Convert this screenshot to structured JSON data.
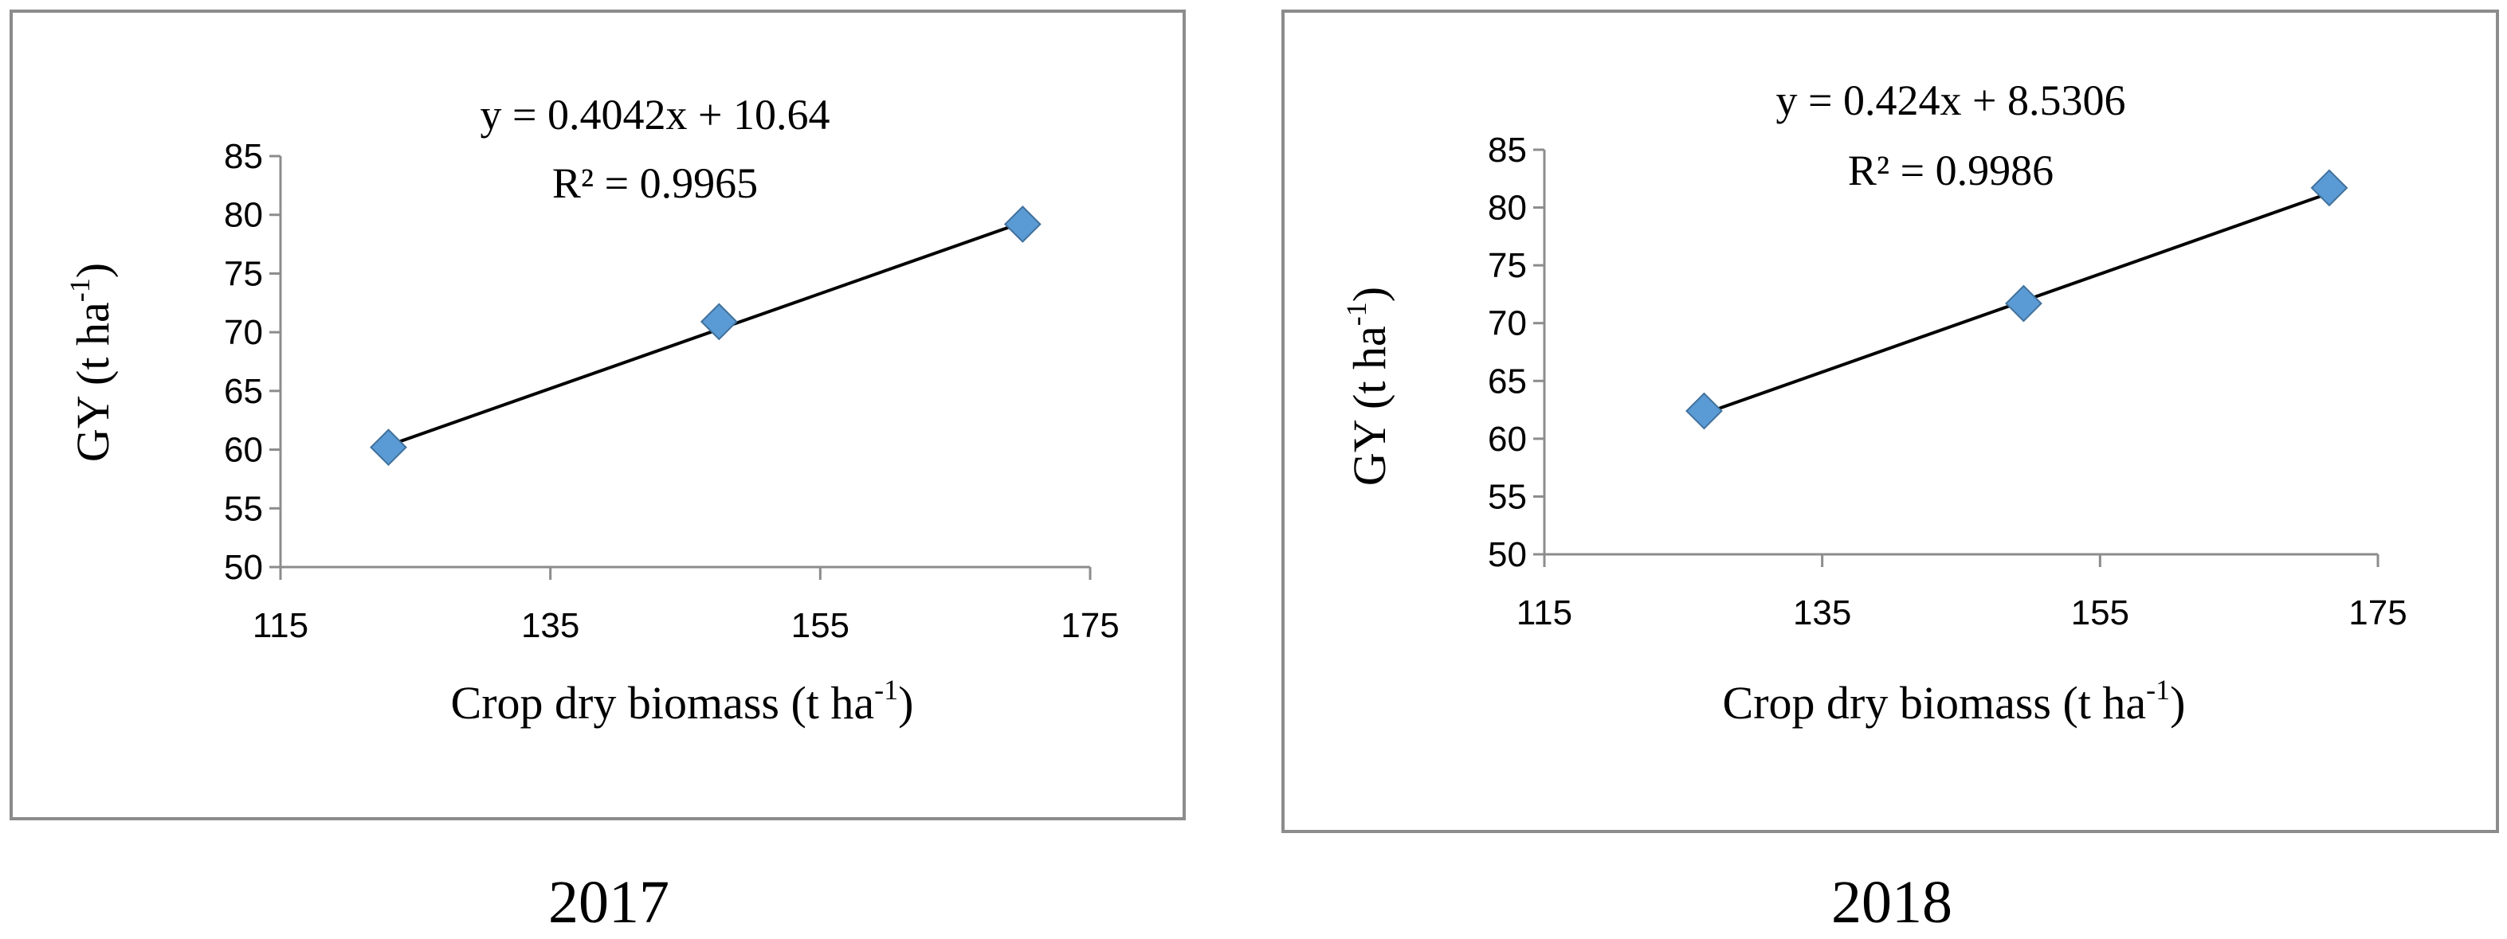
{
  "colors": {
    "marker": "#5b9bd5",
    "marker_stroke": "#41719c",
    "trendline": "#000000",
    "axis": "#8c8c8c",
    "frame": "#8c8c8c"
  },
  "chart_data": [
    {
      "type": "scatter",
      "caption": "2017",
      "xlabel": "Crop dry biomass (t ha",
      "xlabel_sup": "-1",
      "xlabel_end": ")",
      "ylabel": "GY (t ha",
      "ylabel_sup": "-1",
      "ylabel_end": ")",
      "xlim": [
        115,
        175
      ],
      "ylim": [
        50,
        85
      ],
      "xticks": [
        115,
        135,
        155,
        175
      ],
      "yticks": [
        50,
        55,
        60,
        65,
        70,
        75,
        80,
        85
      ],
      "grid": false,
      "legend": "none",
      "marker": "diamond",
      "series": [
        {
          "x": [
            123,
            147.5,
            170
          ],
          "y": [
            60.2,
            70.9,
            79.2
          ]
        }
      ],
      "trendline": {
        "type": "linear",
        "slope": 0.4042,
        "intercept": 10.64,
        "x_range": [
          123,
          170
        ],
        "equation": "y = 0.4042x + 10.64",
        "r2_label": "R² = 0.9965"
      }
    },
    {
      "type": "scatter",
      "caption": "2018",
      "xlabel": "Crop dry biomass (t ha",
      "xlabel_sup": "-1",
      "xlabel_end": ")",
      "ylabel": "GY (t ha",
      "ylabel_sup": "-1",
      "ylabel_end": ")",
      "xlim": [
        115,
        175
      ],
      "ylim": [
        50,
        85
      ],
      "xticks": [
        115,
        135,
        155,
        175
      ],
      "yticks": [
        50,
        55,
        60,
        65,
        70,
        75,
        80,
        85
      ],
      "grid": false,
      "legend": "none",
      "marker": "diamond",
      "series": [
        {
          "x": [
            126.5,
            149.5,
            171.5
          ],
          "y": [
            62.4,
            71.7,
            81.7
          ]
        }
      ],
      "trendline": {
        "type": "linear",
        "slope": 0.424,
        "intercept": 8.5306,
        "x_range": [
          126.5,
          171.5
        ],
        "equation": "y = 0.424x + 8.5306",
        "r2_label": "R² = 0.9986"
      }
    }
  ]
}
